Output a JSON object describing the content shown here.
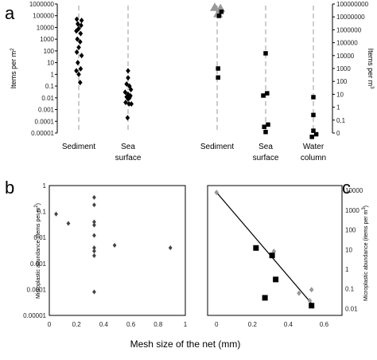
{
  "chart_data": [
    {
      "panel_label": "a",
      "type": "scatter",
      "y_scale": "log",
      "y_left_label": "Items per m",
      "y_left_label_sup": "2",
      "y_right_label": "Items per m",
      "y_right_label_sup": "3",
      "y_left_ticks": [
        "0.00001",
        "0.0001",
        "0.001",
        "0.01",
        "0.1",
        "1",
        "10",
        "100",
        "1000",
        "10000",
        "100000",
        "1000000"
      ],
      "y_right_ticks": [
        "0",
        "0,1",
        "1",
        "10",
        "100",
        "1000",
        "10000",
        "100000",
        "1000000",
        "10000000",
        "100000000"
      ],
      "categories": [
        {
          "label": [
            "Sediment"
          ],
          "axis": "left"
        },
        {
          "label": [
            "Sea",
            "surface"
          ],
          "axis": "left"
        },
        {
          "label": [
            "Sediment"
          ],
          "axis": "right"
        },
        {
          "label": [
            "Sea",
            "surface"
          ],
          "axis": "right"
        },
        {
          "label": [
            "Water",
            "column"
          ],
          "axis": "right"
        }
      ],
      "series": [
        {
          "category": 0,
          "marker": "diamond",
          "points": [
            [
              -0.4,
              50000
            ],
            [
              0.6,
              40000
            ],
            [
              -0.2,
              20000
            ],
            [
              0.5,
              15000
            ],
            [
              0,
              8000
            ],
            [
              -0.5,
              5000
            ],
            [
              0.4,
              3000
            ],
            [
              -0.3,
              1000
            ],
            [
              0.3,
              600
            ],
            [
              0,
              200
            ],
            [
              -0.4,
              80
            ],
            [
              0.6,
              40
            ],
            [
              -0.2,
              10
            ],
            [
              0.4,
              3
            ],
            [
              -0.5,
              2
            ],
            [
              0,
              1
            ],
            [
              0.3,
              0.2
            ]
          ]
        },
        {
          "category": 1,
          "marker": "diamond",
          "points": [
            [
              0,
              2
            ],
            [
              0,
              0.5
            ],
            [
              -0.3,
              0.15
            ],
            [
              0.3,
              0.1
            ],
            [
              0.6,
              0.05
            ],
            [
              -0.6,
              0.03
            ],
            [
              0,
              0.02
            ],
            [
              0.5,
              0.015
            ],
            [
              -0.3,
              0.012
            ],
            [
              0.3,
              0.01
            ],
            [
              0,
              0.008
            ],
            [
              -0.5,
              0.004
            ],
            [
              0.2,
              0.003
            ],
            [
              0.7,
              0.003
            ],
            [
              -0.1,
              0.0002
            ]
          ]
        },
        {
          "category": 2,
          "marker": "triangle",
          "points": [
            [
              -0.5,
              55000000
            ],
            [
              0.7,
              45000000
            ],
            [
              0.2,
              18000000
            ]
          ]
        },
        {
          "category": 2,
          "marker": "square",
          "points": [
            [
              0.9,
              25000000
            ],
            [
              0.4,
              12000000
            ],
            [
              0.2,
              1000
            ],
            [
              0.2,
              200
            ]
          ]
        },
        {
          "category": 3,
          "marker": "square",
          "points": [
            [
              0,
              15000
            ],
            [
              0.3,
              12
            ],
            [
              -0.5,
              8
            ],
            [
              0.5,
              0.045
            ],
            [
              -0.3,
              0.03
            ],
            [
              0,
              0.012
            ]
          ]
        },
        {
          "category": 4,
          "marker": "square",
          "points": [
            [
              0,
              6
            ],
            [
              0,
              0.25
            ],
            [
              0,
              0.015
            ],
            [
              0.6,
              0.008
            ],
            [
              -0.3,
              0.005
            ]
          ]
        }
      ]
    },
    {
      "panel_label": "b",
      "type": "scatter",
      "y_scale": "log",
      "ylabel": "Microplastic abundance (items per m",
      "ylabel_sup": "2",
      "ylabel_end": ")",
      "xlim": [
        0,
        1
      ],
      "x_ticks": [
        "0",
        "0.2",
        "0.4",
        "0.6",
        "0.8",
        "1"
      ],
      "y_ticks": [
        "0.00001",
        "0.0001",
        "0.001",
        "0.01",
        "0.1",
        "1"
      ],
      "points": [
        [
          0.05,
          0.08
        ],
        [
          0.14,
          0.035
        ],
        [
          0.33,
          0.35
        ],
        [
          0.33,
          0.18
        ],
        [
          0.33,
          0.04
        ],
        [
          0.33,
          0.03
        ],
        [
          0.33,
          0.012
        ],
        [
          0.33,
          0.004
        ],
        [
          0.33,
          0.003
        ],
        [
          0.33,
          0.002
        ],
        [
          0.33,
          8e-05
        ],
        [
          0.48,
          0.005
        ],
        [
          0.89,
          0.004
        ]
      ]
    },
    {
      "panel_label": "c",
      "type": "scatter",
      "y_scale": "log",
      "ylabel": "Microplastic abundance (items per m",
      "ylabel_sup": "3",
      "ylabel_end": ")",
      "xlim": [
        -0.05,
        0.7
      ],
      "x_ticks": [
        "0",
        "0.2",
        "0.4",
        "0.6"
      ],
      "y_ticks": [
        "0.01",
        "0.1",
        "1",
        "10",
        "100",
        "1000",
        "10000"
      ],
      "grey_points": [
        [
          0.0,
          8000
        ],
        [
          0.32,
          8
        ],
        [
          0.46,
          0.06
        ],
        [
          0.53,
          0.09
        ],
        [
          0.52,
          0.025
        ]
      ],
      "black_points": [
        [
          0.22,
          12
        ],
        [
          0.31,
          5
        ],
        [
          0.33,
          0.3
        ],
        [
          0.27,
          0.035
        ],
        [
          0.53,
          0.014
        ]
      ],
      "trendline": [
        [
          0.0,
          8000
        ],
        [
          0.53,
          0.018
        ]
      ]
    }
  ],
  "xlabel_bc": "Mesh size of the net (mm)"
}
